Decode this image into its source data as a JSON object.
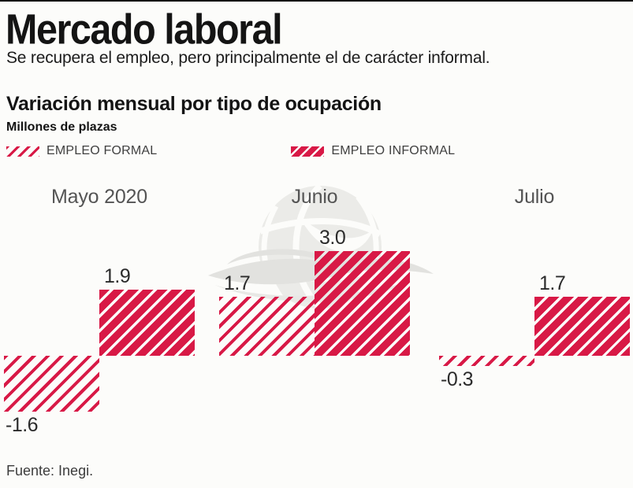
{
  "header": {
    "title": "Mercado laboral",
    "subtitle": "Se recupera el empleo, pero principalmente el de carácter informal."
  },
  "chart": {
    "section_title": "Variación mensual por tipo de ocupación",
    "unit_label": "Millones de plazas",
    "legend": [
      {
        "label": "EMPLEO FORMAL",
        "style": "thin-hatch"
      },
      {
        "label": "EMPLEO INFORMAL",
        "style": "thick-hatch"
      }
    ],
    "source": "Fuente: Inegi."
  },
  "chart_data": {
    "type": "bar",
    "title": "Variación mensual por tipo de ocupación",
    "ylabel": "Millones de plazas",
    "categories": [
      "Mayo 2020",
      "Junio",
      "Julio"
    ],
    "series": [
      {
        "name": "EMPLEO FORMAL",
        "style": "thin-hatch",
        "values": [
          -1.6,
          1.7,
          -0.3
        ],
        "labels": [
          "-1.6",
          "1.7",
          "-0.3"
        ]
      },
      {
        "name": "EMPLEO INFORMAL",
        "style": "thick-hatch",
        "values": [
          1.9,
          3.0,
          1.7
        ],
        "labels": [
          "1.9",
          "3.0",
          "1.7"
        ]
      }
    ],
    "ylim": [
      -2.0,
      3.5
    ],
    "grid": false,
    "legend_position": "top-left",
    "accent_color": "#D81946",
    "source": "Fuente: Inegi."
  }
}
